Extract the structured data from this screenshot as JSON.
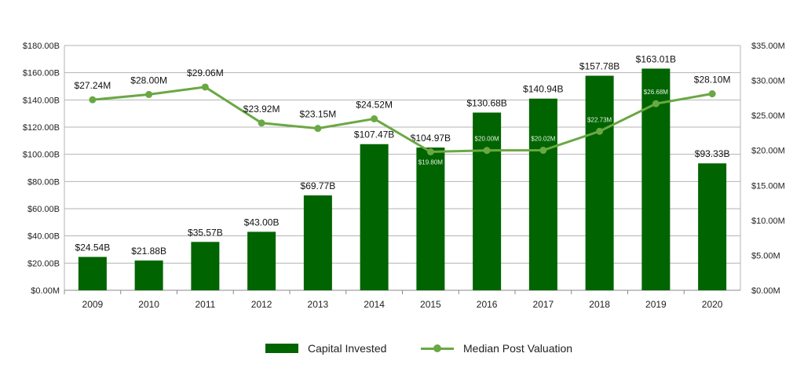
{
  "chart_data": {
    "type": "bar",
    "title": "",
    "categories": [
      "2009",
      "2010",
      "2011",
      "2012",
      "2013",
      "2014",
      "2015",
      "2016",
      "2017",
      "2018",
      "2019",
      "2020"
    ],
    "series": [
      {
        "name": "Capital Invested",
        "type": "bar",
        "axis": "left",
        "color": "#006400",
        "values": [
          24.54,
          21.88,
          35.57,
          43.0,
          69.77,
          107.47,
          104.97,
          130.68,
          140.94,
          157.78,
          163.01,
          93.33
        ],
        "labels": [
          "$24.54B",
          "$21.88B",
          "$35.57B",
          "$43.00B",
          "$69.77B",
          "$107.47B",
          "$104.97B",
          "$130.68B",
          "$140.94B",
          "$157.78B",
          "$163.01B",
          "$93.33B"
        ]
      },
      {
        "name": "Median Post Valuation",
        "type": "line",
        "axis": "right",
        "color": "#6aa843",
        "values": [
          27.24,
          28.0,
          29.06,
          23.92,
          23.15,
          24.52,
          19.8,
          20.0,
          20.02,
          22.73,
          26.68,
          28.1
        ],
        "labels": [
          "$27.24M",
          "$28.00M",
          "$29.06M",
          "$23.92M",
          "$23.15M",
          "$24.52M",
          "$19.80M",
          "$20.00M",
          "$20.02M",
          "$22.73M",
          "$26.68M",
          "$28.10M"
        ],
        "label_inside": [
          false,
          false,
          false,
          false,
          false,
          false,
          true,
          true,
          true,
          true,
          true,
          false
        ]
      }
    ],
    "y_left": {
      "ylim": [
        0,
        180
      ],
      "ticks": [
        0,
        20,
        40,
        60,
        80,
        100,
        120,
        140,
        160,
        180
      ],
      "tick_labels": [
        "$0.00M",
        "$20.00B",
        "$40.00B",
        "$60.00B",
        "$80.00B",
        "$100.00B",
        "$120.00B",
        "$140.00B",
        "$160.00B",
        "$180.00B"
      ]
    },
    "y_right": {
      "ylim": [
        0,
        35
      ],
      "ticks": [
        0,
        5,
        10,
        15,
        20,
        25,
        30,
        35
      ],
      "tick_labels": [
        "$0.00M",
        "$5.00M",
        "$10.00M",
        "$15.00M",
        "$20.00M",
        "$25.00M",
        "$30.00M",
        "$35.00M"
      ]
    },
    "grid": true,
    "legend_position": "bottom",
    "colors": {
      "grid": "#b3b3b3",
      "axis_text": "#222222",
      "bar": "#006400",
      "line": "#6aa843"
    }
  },
  "legend": {
    "bar_label": "Capital Invested",
    "line_label": "Median Post Valuation"
  }
}
